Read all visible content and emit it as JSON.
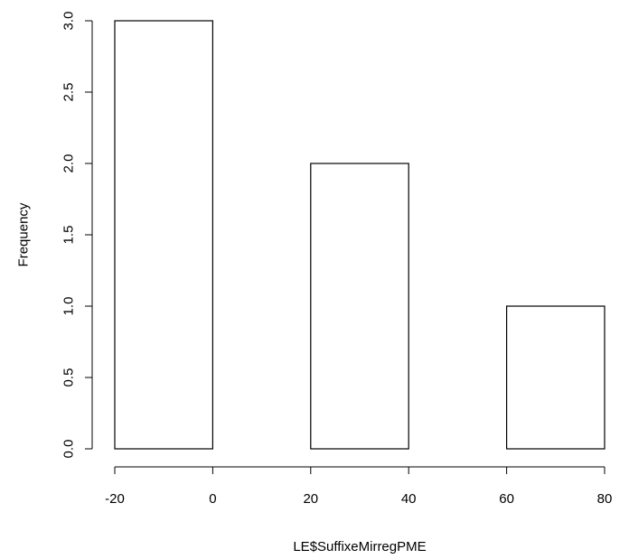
{
  "chart_data": {
    "type": "bar",
    "title": "",
    "xlabel": "LE$SuffixeMirregPME",
    "ylabel": "Frequency",
    "bins": [
      {
        "x0": -20,
        "x1": 0,
        "count": 3
      },
      {
        "x0": 20,
        "x1": 40,
        "count": 2
      },
      {
        "x0": 60,
        "x1": 80,
        "count": 1
      }
    ],
    "xlim": [
      -20,
      80
    ],
    "ylim": [
      0,
      3
    ],
    "x_ticks": [
      -20,
      0,
      20,
      40,
      60,
      80
    ],
    "x_tick_labels": [
      "-20",
      "0",
      "20",
      "40",
      "60",
      "80"
    ],
    "y_ticks": [
      0,
      0.5,
      1,
      1.5,
      2,
      2.5,
      3
    ],
    "y_tick_labels": [
      "0.0",
      "0.5",
      "1.0",
      "1.5",
      "2.0",
      "2.5",
      "3.0"
    ],
    "grid": false,
    "legend": "none"
  }
}
